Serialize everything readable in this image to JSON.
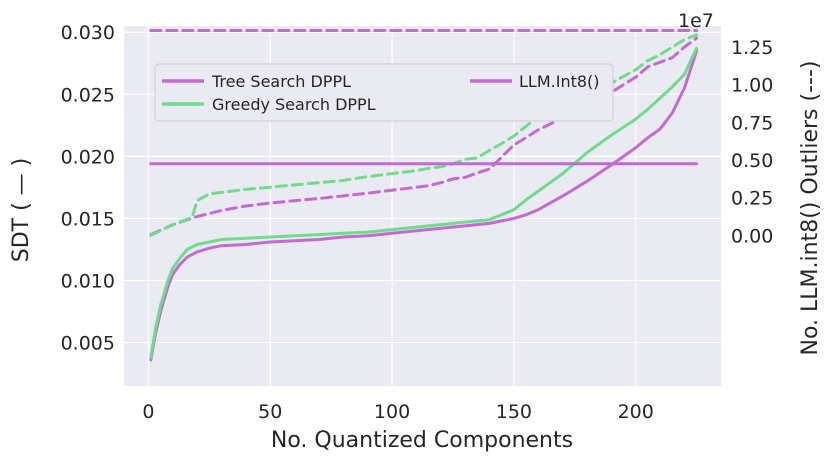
{
  "chart_data": {
    "type": "line",
    "xlabel": "No. Quantized Components",
    "ylabel_left": "SDT ( — )",
    "ylabel_right": "No. LLM.int8() Outliers (---)",
    "right_axis_multiplier": "1e7",
    "xlim": [
      -10,
      235
    ],
    "ylim_left": [
      0.0015,
      0.0305
    ],
    "ylim_right": [
      -10000000,
      13900000
    ],
    "x_ticks": [
      "0",
      "50",
      "100",
      "150",
      "200"
    ],
    "y_ticks_left": [
      "0.005",
      "0.010",
      "0.015",
      "0.020",
      "0.025",
      "0.030"
    ],
    "y_ticks_right": [
      "0.00",
      "0.25",
      "0.50",
      "0.75",
      "1.00",
      "1.25"
    ],
    "legend": [
      {
        "label": "Tree Search DPPL",
        "color": "#c26bd1"
      },
      {
        "label": "LLM.Int8()",
        "color": "#c26bd1"
      },
      {
        "label": "Greedy Search DPPL",
        "color": "#6fdc8c"
      }
    ],
    "series": [
      {
        "name": "Tree Search DPPL",
        "axis": "left",
        "style": "solid",
        "color": "#c26bd1",
        "x": [
          1,
          3,
          5,
          8,
          10,
          13,
          16,
          20,
          25,
          30,
          40,
          50,
          60,
          70,
          80,
          90,
          100,
          110,
          120,
          130,
          140,
          145,
          150,
          155,
          160,
          170,
          180,
          190,
          200,
          205,
          210,
          215,
          220,
          225
        ],
        "y": [
          0.0036,
          0.0058,
          0.0075,
          0.0095,
          0.0105,
          0.0113,
          0.0119,
          0.0123,
          0.0126,
          0.0128,
          0.0129,
          0.0131,
          0.0132,
          0.0133,
          0.0135,
          0.0136,
          0.0138,
          0.014,
          0.0142,
          0.0144,
          0.0146,
          0.0148,
          0.015,
          0.0153,
          0.0157,
          0.0168,
          0.018,
          0.0193,
          0.0207,
          0.0215,
          0.0222,
          0.0235,
          0.0255,
          0.0285
        ]
      },
      {
        "name": "Greedy Search DPPL",
        "axis": "left",
        "style": "solid",
        "color": "#6fdc8c",
        "x": [
          1,
          3,
          5,
          8,
          10,
          13,
          16,
          20,
          25,
          30,
          40,
          50,
          60,
          70,
          80,
          90,
          100,
          110,
          120,
          130,
          140,
          145,
          150,
          155,
          160,
          170,
          180,
          190,
          200,
          205,
          210,
          215,
          220,
          225
        ],
        "y": [
          0.0038,
          0.0062,
          0.008,
          0.01,
          0.011,
          0.0118,
          0.0125,
          0.0129,
          0.0131,
          0.0133,
          0.0134,
          0.0135,
          0.0136,
          0.0137,
          0.0138,
          0.0139,
          0.0141,
          0.0143,
          0.0145,
          0.0147,
          0.0149,
          0.0153,
          0.0157,
          0.0165,
          0.0172,
          0.0186,
          0.0203,
          0.0217,
          0.023,
          0.0238,
          0.0247,
          0.0256,
          0.0266,
          0.0287
        ]
      },
      {
        "name": "Tree Search DPPL outliers",
        "axis": "right",
        "style": "dashed",
        "color": "#c26bd1",
        "x": [
          1,
          10,
          20,
          30,
          40,
          50,
          60,
          70,
          80,
          90,
          100,
          110,
          115,
          120,
          125,
          130,
          135,
          140,
          145,
          150,
          155,
          160,
          170,
          180,
          190,
          200,
          205,
          210,
          215,
          220,
          225
        ],
        "y": [
          50000,
          700000,
          1250000,
          1650000,
          1950000,
          2150000,
          2300000,
          2450000,
          2620000,
          2800000,
          3000000,
          3200000,
          3300000,
          3500000,
          3750000,
          3850000,
          4150000,
          4400000,
          5200000,
          6000000,
          6500000,
          7000000,
          7800000,
          8600000,
          9500000,
          10500000,
          11200000,
          11500000,
          11800000,
          12500000,
          13100000
        ]
      },
      {
        "name": "Greedy Search DPPL outliers",
        "axis": "right",
        "style": "dashed",
        "color": "#6fdc8c",
        "x": [
          1,
          10,
          18,
          20,
          25,
          30,
          40,
          50,
          60,
          70,
          80,
          90,
          100,
          110,
          115,
          120,
          125,
          130,
          135,
          140,
          145,
          150,
          155,
          160,
          170,
          180,
          190,
          200,
          205,
          210,
          215,
          220,
          225
        ],
        "y": [
          0,
          700000,
          1200000,
          2300000,
          2750000,
          2850000,
          3050000,
          3200000,
          3350000,
          3500000,
          3650000,
          3900000,
          4100000,
          4300000,
          4450000,
          4550000,
          4750000,
          5050000,
          5150000,
          5650000,
          6100000,
          6600000,
          7250000,
          7900000,
          8500000,
          9200000,
          10100000,
          11000000,
          11600000,
          12000000,
          12500000,
          13000000,
          13300000
        ]
      },
      {
        "name": "LLM.Int8() SDT",
        "axis": "left",
        "style": "solid",
        "color": "#c26bd1",
        "x": [
          1,
          225
        ],
        "y": [
          0.0194,
          0.0194
        ]
      },
      {
        "name": "LLM.Int8() outliers",
        "axis": "right",
        "style": "dashed",
        "color": "#c26bd1",
        "x": [
          1,
          225
        ],
        "y": [
          13600000,
          13600000
        ]
      }
    ]
  }
}
